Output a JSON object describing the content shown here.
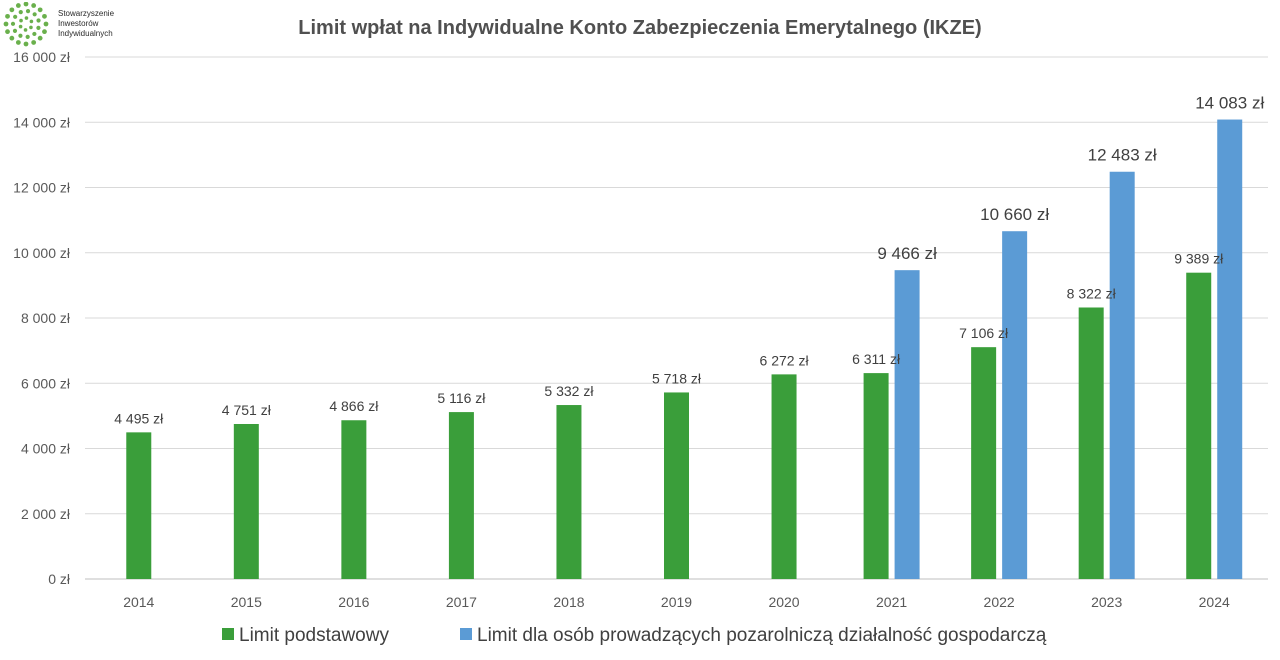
{
  "logo": {
    "lines": [
      "Stowarzyszenie",
      "Inwestorów",
      "Indywidualnych"
    ],
    "color": "#6ab04c"
  },
  "chart_data": {
    "type": "bar",
    "title": "Limit wpłat na Indywidualne Konto Zabezpieczenia Emerytalnego (IKZE)",
    "xlabel": "",
    "ylabel": "",
    "ylim": [
      0,
      16000
    ],
    "yticks": [
      0,
      2000,
      4000,
      6000,
      8000,
      10000,
      12000,
      14000,
      16000
    ],
    "ytick_labels": [
      "0 zł",
      "2 000 zł",
      "4 000 zł",
      "6 000 zł",
      "8 000 zł",
      "10 000 zł",
      "12 000 zł",
      "14 000 zł",
      "16 000 zł"
    ],
    "grid": true,
    "legend_position": "bottom",
    "categories": [
      "2014",
      "2015",
      "2016",
      "2017",
      "2018",
      "2019",
      "2020",
      "2021",
      "2022",
      "2023",
      "2024"
    ],
    "series": [
      {
        "name": "Limit podstawowy",
        "color": "#3a9e3a",
        "values": [
          4495,
          4751,
          4866,
          5116,
          5332,
          5718,
          6272,
          6311,
          7106,
          8322,
          9389
        ],
        "labels": [
          "4 495 zł",
          "4 751 zł",
          "4 866 zł",
          "5 116 zł",
          "5 332 zł",
          "5 718 zł",
          "6 272 zł",
          "6 311 zł",
          "7 106 zł",
          "8 322 zł",
          "9 389 zł"
        ]
      },
      {
        "name": "Limit dla osób prowadzących pozarolniczą działalność gospodarczą",
        "color": "#5b9bd5",
        "values": [
          null,
          null,
          null,
          null,
          null,
          null,
          null,
          9466,
          10660,
          12483,
          14083
        ],
        "labels": [
          null,
          null,
          null,
          null,
          null,
          null,
          null,
          "9 466 zł",
          "10 660 zł",
          "12 483 zł",
          "14 083 zł"
        ]
      }
    ]
  }
}
